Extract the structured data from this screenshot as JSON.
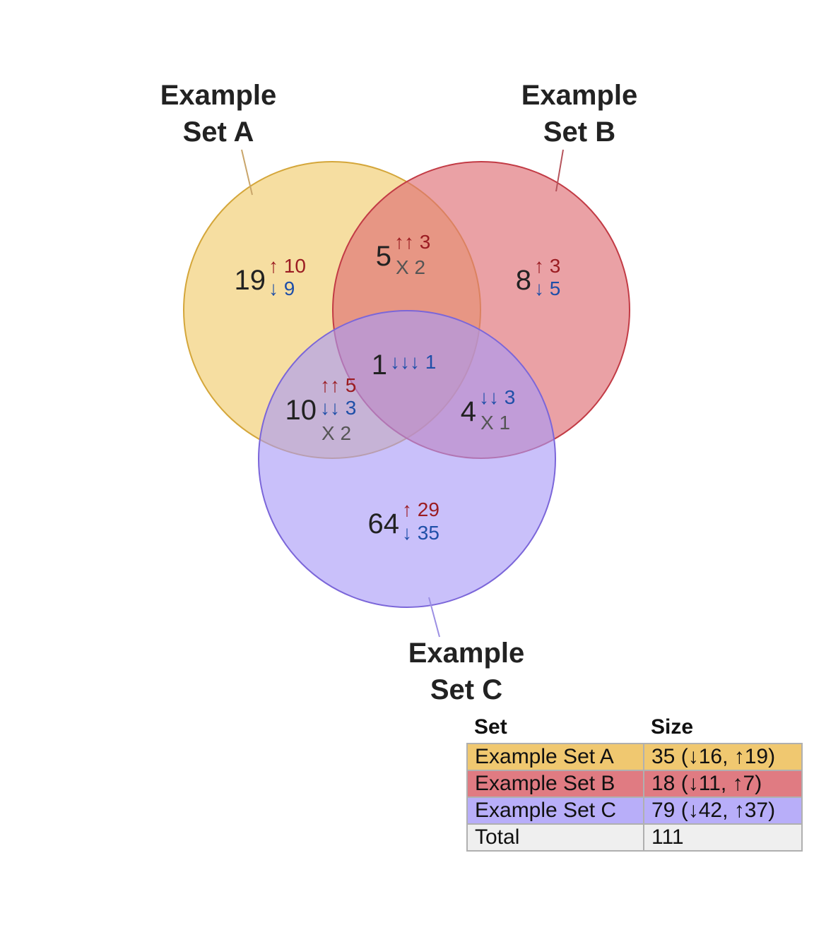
{
  "sets": [
    {
      "name_line1": "Example",
      "name_line2": "Set A",
      "color": "#f0c862"
    },
    {
      "name_line1": "Example",
      "name_line2": "Set B",
      "color": "#e07b82"
    },
    {
      "name_line1": "Example",
      "name_line2": "Set C",
      "color": "#b8aef9"
    }
  ],
  "regions": {
    "a_only": {
      "count": "19",
      "up_label": "↑ 10",
      "down_label": "↓ 9"
    },
    "b_only": {
      "count": "8",
      "up_label": "↑ 3",
      "down_label": "↓ 5"
    },
    "c_only": {
      "count": "64",
      "up_label": "↑ 29",
      "down_label": "↓ 35"
    },
    "ab": {
      "count": "5",
      "up_label": "↑↑ 3",
      "mixed_label": "X 2"
    },
    "ac": {
      "count": "10",
      "up_label": "↑↑ 5",
      "down_label": "↓↓ 3",
      "mixed_label": "X 2"
    },
    "bc": {
      "count": "4",
      "down_label": "↓↓ 3",
      "mixed_label": "X 1"
    },
    "abc": {
      "count": "1",
      "down_label": "↓↓↓ 1"
    }
  },
  "table": {
    "headers": [
      "Set",
      "Size"
    ],
    "rows": [
      {
        "set": "Example Set A",
        "size": "35 (↓16, ↑19)",
        "color": "#f0c870"
      },
      {
        "set": "Example Set B",
        "size": "18 (↓11, ↑7)",
        "color": "#e07b82"
      },
      {
        "set": "Example Set C",
        "size": "79 (↓42, ↑37)",
        "color": "#b8aef9"
      },
      {
        "set": "Total",
        "size": "111",
        "color": "#efefef"
      }
    ]
  }
}
